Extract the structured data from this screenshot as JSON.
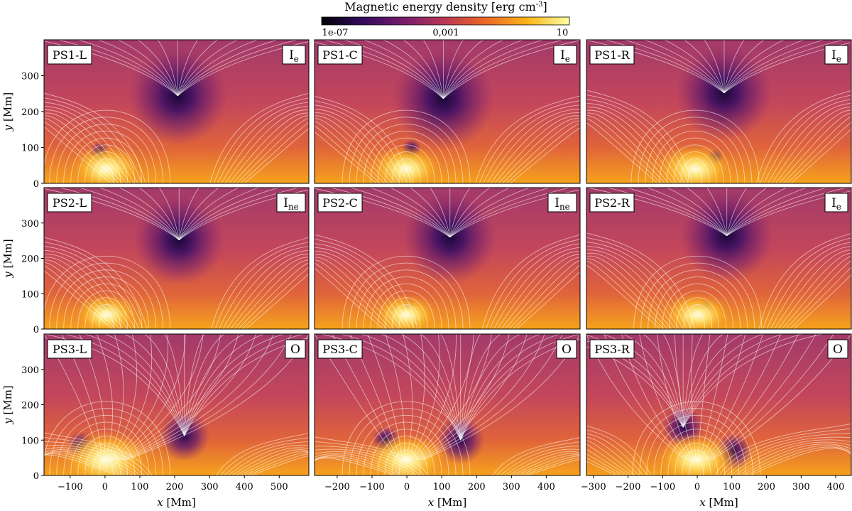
{
  "colorbar": {
    "title_main": "Magnetic energy density [erg cm",
    "title_sup": "-3",
    "title_close": "]",
    "tick_labels": [
      "1e-07",
      "0,001",
      "10"
    ],
    "colors": [
      "#000004",
      "#320a5e",
      "#781c6d",
      "#bc3754",
      "#ed6925",
      "#fbb61a",
      "#fcffa4"
    ]
  },
  "axes": {
    "ylabel_var": "y",
    "ylabel_unit": " [Mm]",
    "xlabel_var": "x",
    "xlabel_unit": " [Mm]",
    "y_ticks": [
      "0",
      "100",
      "200",
      "300"
    ],
    "columns": [
      {
        "x_ticks": [
          "−100",
          "0",
          "100",
          "200",
          "300",
          "400",
          "500"
        ]
      },
      {
        "x_ticks": [
          "−200",
          "−100",
          "0",
          "100",
          "200",
          "300",
          "400"
        ]
      },
      {
        "x_ticks": [
          "−300",
          "−200",
          "−100",
          "0",
          "100",
          "200",
          "300",
          "400"
        ]
      }
    ]
  },
  "panels": [
    {
      "label": "PS1-L",
      "topo_main": "I",
      "topo_sub": "e"
    },
    {
      "label": "PS1-C",
      "topo_main": "I",
      "topo_sub": "e"
    },
    {
      "label": "PS1-R",
      "topo_main": "I",
      "topo_sub": "e"
    },
    {
      "label": "PS2-L",
      "topo_main": "I",
      "topo_sub": "ne"
    },
    {
      "label": "PS2-C",
      "topo_main": "I",
      "topo_sub": "ne"
    },
    {
      "label": "PS2-R",
      "topo_main": "I",
      "topo_sub": "e"
    },
    {
      "label": "PS3-L",
      "topo_main": "O",
      "topo_sub": ""
    },
    {
      "label": "PS3-C",
      "topo_main": "O",
      "topo_sub": ""
    },
    {
      "label": "PS3-R",
      "topo_main": "O",
      "topo_sub": ""
    }
  ]
}
